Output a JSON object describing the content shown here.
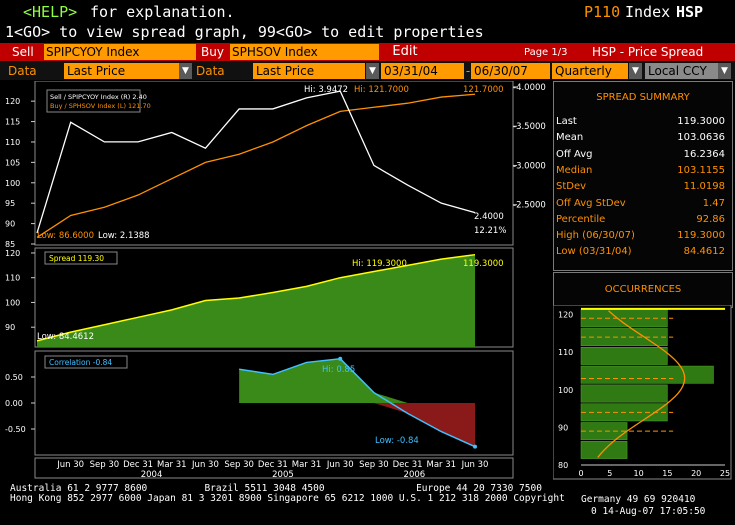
{
  "header": {
    "help_key": "<HELP>",
    "help_text": " for explanation.",
    "function_code": "P110",
    "index_label": "Index",
    "function_name": "HSP",
    "line2": "1<GO> to view spread graph, 99<GO> to edit properties"
  },
  "toolbar": {
    "sell_label": "Sell",
    "sell_ticker": "SPIPCYOY Index",
    "buy_label": "Buy",
    "buy_ticker": "SPHSOV Index",
    "edit_label": "Edit",
    "page_label": "Page 1/3",
    "title": "HSP - Price Spread",
    "data_label_1": "Data",
    "data_field_1": "Last Price",
    "data_label_2": "Data",
    "data_field_2": "Last Price",
    "start_date": "03/31/04",
    "end_date": "06/30/07",
    "period": "Quarterly",
    "currency": "Local CCY"
  },
  "spread_summary": {
    "title": "SPREAD SUMMARY",
    "rows": [
      {
        "label": "Last",
        "value": "119.3000",
        "color": "#ffffff"
      },
      {
        "label": "Mean",
        "value": "103.0636",
        "color": "#ffffff"
      },
      {
        "label": "Off Avg",
        "value": "16.2364",
        "color": "#ffffff"
      },
      {
        "label": "Median",
        "value": "103.1155",
        "color": "#ff9000"
      },
      {
        "label": "StDev",
        "value": "11.0198",
        "color": "#ff9000"
      },
      {
        "label": "Off Avg StDev",
        "value": "1.47",
        "color": "#ff9000"
      },
      {
        "label": "Percentile",
        "value": "92.86",
        "color": "#ff9000"
      },
      {
        "label": "High (06/30/07)",
        "value": "119.3000",
        "color": "#ff9000"
      },
      {
        "label": "Low (03/31/04)",
        "value": "84.4612",
        "color": "#ff9000"
      }
    ]
  },
  "occurrences": {
    "title": "OCCURRENCES",
    "y_ticks": [
      "120",
      "110",
      "100",
      "90",
      "80"
    ],
    "x_ticks": [
      "0",
      "5",
      "10",
      "15",
      "20",
      "25"
    ]
  },
  "footer": {
    "line1": "Australia 61 2 9777 8600          Brazil 5511 3048 4500                Europe 44 20 7330 7500",
    "line1b": "Germany 49 69 920410",
    "line2": "Hong Kong 852 2977 6000 Japan 81 3 3201 8900 Singapore 65 6212 1000 U.S. 1 212 318 2000 Copyright 2007 Bloomberg L.P.",
    "line3": "0 14-Aug-07 17:05:50"
  },
  "chart_data": [
    {
      "type": "line",
      "x": [
        "03/31/04",
        "06/30/04",
        "09/30/04",
        "12/31/04",
        "03/31/05",
        "06/30/05",
        "09/30/05",
        "12/31/05",
        "03/31/06",
        "06/30/06",
        "09/30/06",
        "12/31/06",
        "03/31/07",
        "06/30/07"
      ],
      "series": [
        {
          "name": "Sell / SPIPCYOY Index (R)",
          "legend_value": "2.40",
          "axis": "right",
          "color": "#ffffff",
          "values": [
            2.1388,
            3.55,
            3.3,
            3.3,
            3.42,
            3.22,
            3.72,
            3.72,
            3.86,
            3.9472,
            3.0,
            2.75,
            2.52,
            2.4
          ]
        },
        {
          "name": "Buy / SPHSOV Index (L)",
          "legend_value": "121.70",
          "axis": "left",
          "color": "#ff9000",
          "values": [
            86.6,
            92.0,
            94.0,
            97.0,
            101.0,
            105.0,
            107.0,
            110.0,
            114.0,
            117.5,
            118.5,
            119.5,
            121.0,
            121.7
          ]
        }
      ],
      "left_ticks": [
        "120",
        "115",
        "110",
        "105",
        "100",
        "95",
        "90",
        "85"
      ],
      "right_ticks": [
        "4.0000",
        "3.5000",
        "3.0000",
        "2.5000"
      ],
      "ylim_left": [
        85,
        122
      ],
      "ylim_right": [
        2.0,
        4.05
      ],
      "annotations": {
        "hi_sell": "Hi: 3.9472",
        "hi_buy": "Hi: 121.7000",
        "low_buy": "Low: 86.6000",
        "low_sell": "Low: 2.1388",
        "last_buy": "121.7000",
        "last_sell": "2.4000",
        "pct": "12.21%"
      }
    },
    {
      "type": "area",
      "x": [
        "03/31/04",
        "06/30/04",
        "09/30/04",
        "12/31/04",
        "03/31/05",
        "06/30/05",
        "09/30/05",
        "12/31/05",
        "03/31/06",
        "06/30/06",
        "09/30/06",
        "12/31/06",
        "03/31/07",
        "06/30/07"
      ],
      "series": [
        {
          "name": "Spread",
          "legend_value": "119.30",
          "color": "#ffff00",
          "values": [
            84.4612,
            88.0,
            91.0,
            94.0,
            97.0,
            100.8,
            101.8,
            104.0,
            106.5,
            110.0,
            112.5,
            115.0,
            117.5,
            119.3
          ]
        }
      ],
      "left_ticks": [
        "120",
        "110",
        "100",
        "90"
      ],
      "ylim": [
        82,
        122
      ],
      "annotations": {
        "hi": "Hi: 119.3000",
        "last": "119.3000",
        "low": "Low: 84.4612"
      }
    },
    {
      "type": "area",
      "x": [
        "09/30/05",
        "12/31/05",
        "03/31/06",
        "06/30/06",
        "09/30/06",
        "12/31/06",
        "03/31/07",
        "06/30/07"
      ],
      "series": [
        {
          "name": "Correlation",
          "legend_value": "-0.84",
          "color": "#40c0ff",
          "values": [
            0.65,
            0.55,
            0.78,
            0.85,
            0.2,
            -0.2,
            -0.55,
            -0.84
          ]
        }
      ],
      "left_ticks": [
        "0.50",
        "0.00",
        "-0.50"
      ],
      "ylim": [
        -1.0,
        1.0
      ],
      "annotations": {
        "hi": "Hi: 0.85",
        "low": "Low: -0.84"
      }
    }
  ],
  "x_axis": {
    "quarters": [
      "Jun 30",
      "Sep 30",
      "Dec 31",
      "Mar 31",
      "Jun 30",
      "Sep 30",
      "Dec 31",
      "Mar 31",
      "Jun 30",
      "Sep 30",
      "Dec 31",
      "Mar 31",
      "Jun 30"
    ],
    "years": [
      "2004",
      "2005",
      "2006"
    ]
  },
  "histogram": {
    "bins": [
      {
        "center": 119,
        "count": 15
      },
      {
        "center": 114,
        "count": 15
      },
      {
        "center": 109,
        "count": 15
      },
      {
        "center": 104,
        "count": 23
      },
      {
        "center": 99,
        "count": 15
      },
      {
        "center": 94,
        "count": 15
      },
      {
        "center": 89,
        "count": 8
      },
      {
        "center": 84,
        "count": 8
      }
    ],
    "xlim": [
      0,
      25
    ],
    "ylim": [
      80,
      122
    ]
  }
}
